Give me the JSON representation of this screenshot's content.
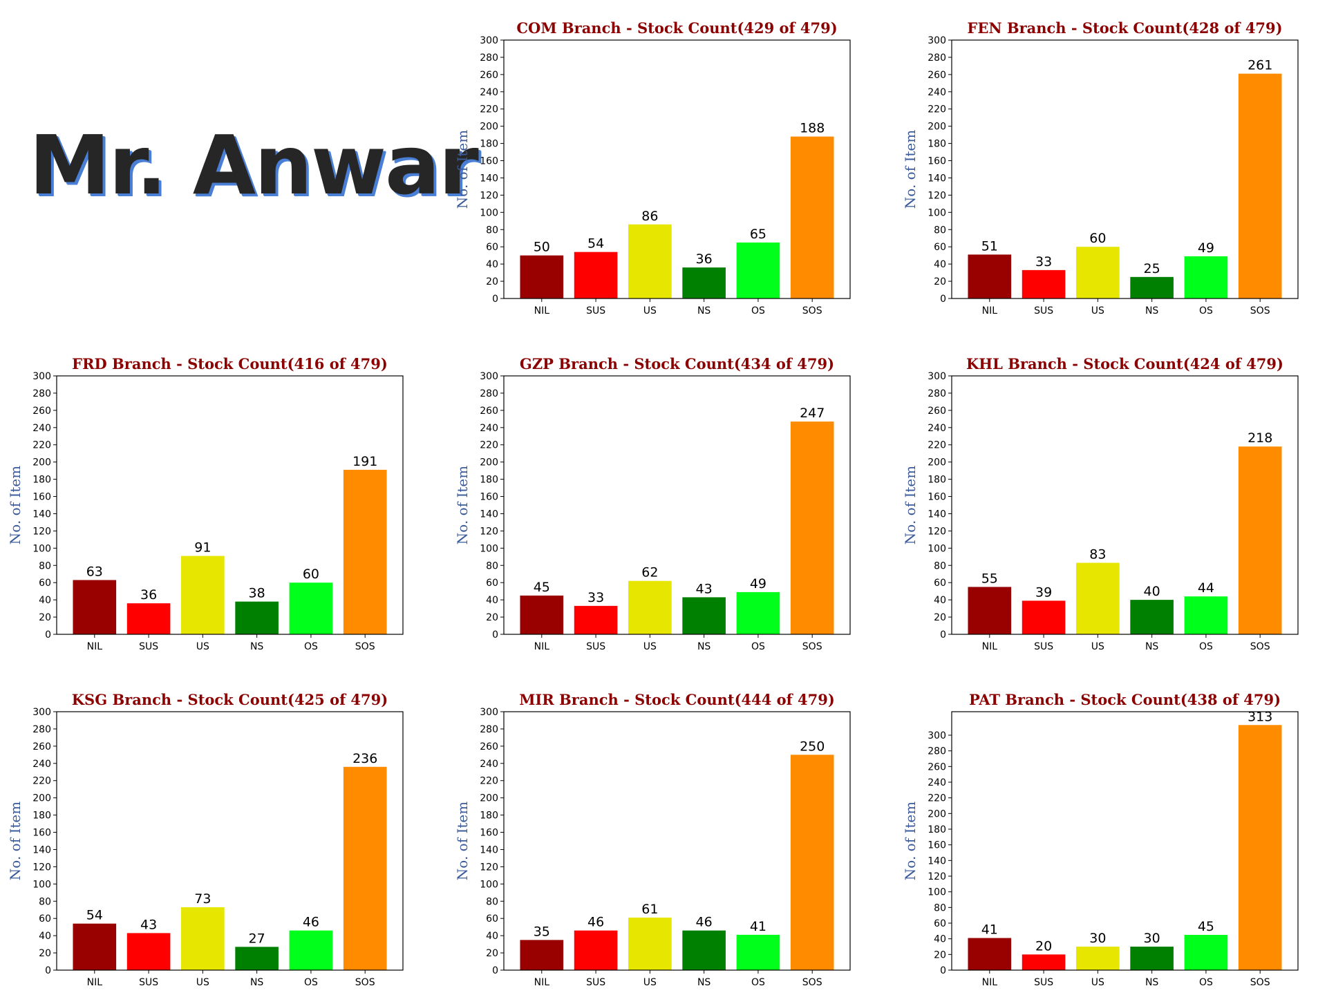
{
  "header": {
    "logo_text": "Mr. Anwar"
  },
  "colors": {
    "NIL": "#990000",
    "SUS": "#ff0000",
    "US": "#e6e600",
    "NS": "#008000",
    "OS": "#00ff1a",
    "SOS": "#ff8c00",
    "title": "#8b0000",
    "ylabel": "#3a5a9a"
  },
  "chart_data": [
    {
      "type": "bar",
      "title": "COM Branch - Stock Count(429 of 479)",
      "ylabel": "No. of Item",
      "categories": [
        "NIL",
        "SUS",
        "US",
        "NS",
        "OS",
        "SOS"
      ],
      "values": [
        50,
        54,
        86,
        36,
        65,
        188
      ],
      "ylim": [
        0,
        300
      ],
      "yticks": [
        0,
        20,
        40,
        60,
        80,
        100,
        120,
        140,
        160,
        180,
        200,
        220,
        240,
        260,
        280,
        300
      ]
    },
    {
      "type": "bar",
      "title": "FEN Branch - Stock Count(428 of 479)",
      "ylabel": "No. of Item",
      "categories": [
        "NIL",
        "SUS",
        "US",
        "NS",
        "OS",
        "SOS"
      ],
      "values": [
        51,
        33,
        60,
        25,
        49,
        261
      ],
      "ylim": [
        0,
        300
      ],
      "yticks": [
        0,
        20,
        40,
        60,
        80,
        100,
        120,
        140,
        160,
        180,
        200,
        220,
        240,
        260,
        280,
        300
      ]
    },
    {
      "type": "bar",
      "title": "FRD Branch - Stock Count(416 of 479)",
      "ylabel": "No. of Item",
      "categories": [
        "NIL",
        "SUS",
        "US",
        "NS",
        "OS",
        "SOS"
      ],
      "values": [
        63,
        36,
        91,
        38,
        60,
        191
      ],
      "ylim": [
        0,
        300
      ],
      "yticks": [
        0,
        20,
        40,
        60,
        80,
        100,
        120,
        140,
        160,
        180,
        200,
        220,
        240,
        260,
        280,
        300
      ]
    },
    {
      "type": "bar",
      "title": "GZP Branch - Stock Count(434 of 479)",
      "ylabel": "No. of Item",
      "categories": [
        "NIL",
        "SUS",
        "US",
        "NS",
        "OS",
        "SOS"
      ],
      "values": [
        45,
        33,
        62,
        43,
        49,
        247
      ],
      "ylim": [
        0,
        300
      ],
      "yticks": [
        0,
        20,
        40,
        60,
        80,
        100,
        120,
        140,
        160,
        180,
        200,
        220,
        240,
        260,
        280,
        300
      ]
    },
    {
      "type": "bar",
      "title": "KHL Branch - Stock Count(424 of 479)",
      "ylabel": "No. of Item",
      "categories": [
        "NIL",
        "SUS",
        "US",
        "NS",
        "OS",
        "SOS"
      ],
      "values": [
        55,
        39,
        83,
        40,
        44,
        218
      ],
      "ylim": [
        0,
        300
      ],
      "yticks": [
        0,
        20,
        40,
        60,
        80,
        100,
        120,
        140,
        160,
        180,
        200,
        220,
        240,
        260,
        280,
        300
      ]
    },
    {
      "type": "bar",
      "title": "KSG Branch - Stock Count(425 of 479)",
      "ylabel": "No. of Item",
      "categories": [
        "NIL",
        "SUS",
        "US",
        "NS",
        "OS",
        "SOS"
      ],
      "values": [
        54,
        43,
        73,
        27,
        46,
        236
      ],
      "ylim": [
        0,
        300
      ],
      "yticks": [
        0,
        20,
        40,
        60,
        80,
        100,
        120,
        140,
        160,
        180,
        200,
        220,
        240,
        260,
        280,
        300
      ]
    },
    {
      "type": "bar",
      "title": "MIR Branch - Stock Count(444 of 479)",
      "ylabel": "No. of Item",
      "categories": [
        "NIL",
        "SUS",
        "US",
        "NS",
        "OS",
        "SOS"
      ],
      "values": [
        35,
        46,
        61,
        46,
        41,
        250
      ],
      "ylim": [
        0,
        300
      ],
      "yticks": [
        0,
        20,
        40,
        60,
        80,
        100,
        120,
        140,
        160,
        180,
        200,
        220,
        240,
        260,
        280,
        300
      ]
    },
    {
      "type": "bar",
      "title": "PAT Branch - Stock Count(438 of 479)",
      "ylabel": "No. of Item",
      "categories": [
        "NIL",
        "SUS",
        "US",
        "NS",
        "OS",
        "SOS"
      ],
      "values": [
        41,
        20,
        30,
        30,
        45,
        313
      ],
      "ylim": [
        0,
        330
      ],
      "yticks": [
        0,
        20,
        40,
        60,
        80,
        100,
        120,
        140,
        160,
        180,
        200,
        220,
        240,
        260,
        280,
        300
      ]
    }
  ]
}
